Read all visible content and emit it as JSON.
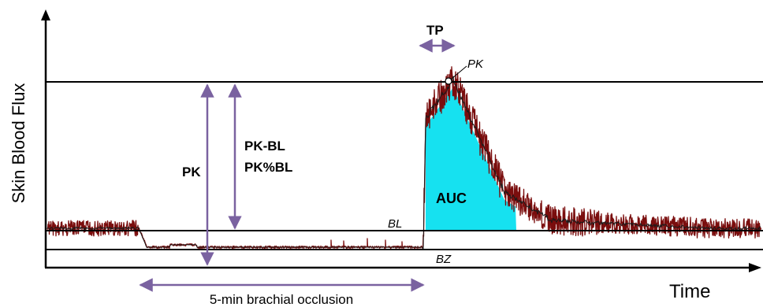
{
  "axes": {
    "y_label": "Skin Blood Flux",
    "x_label": "Time"
  },
  "annotations": {
    "tp": "TP",
    "pk_peak": "PK",
    "pk_arrow": "PK",
    "pk_minus_bl": "PK-BL",
    "pk_percent_bl": "PK%BL",
    "auc": "AUC",
    "bl": "BL",
    "bz": "BZ",
    "occlusion": "5-min brachial occlusion"
  },
  "colors": {
    "trace": "#7a0d0d",
    "trace_mean": "#1a1a1a",
    "auc_fill": "#16e1f0",
    "arrow": "#7a62a0",
    "reference_line": "#000000"
  }
}
